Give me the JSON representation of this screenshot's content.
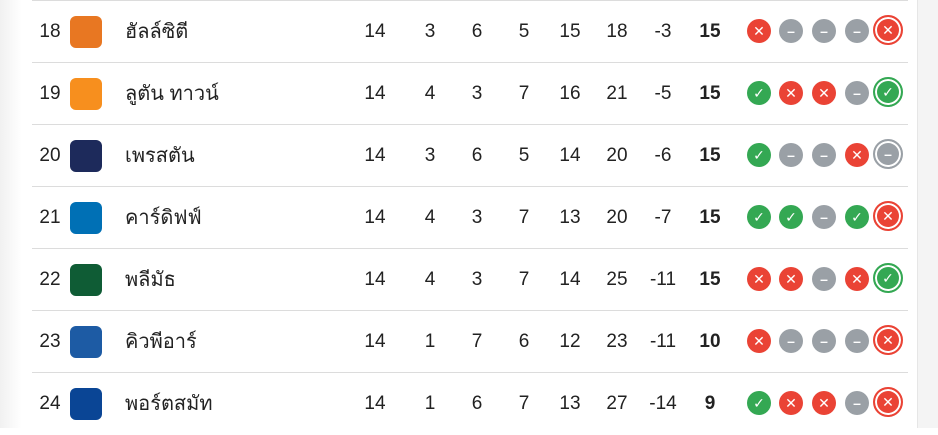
{
  "colors": {
    "win": "#34a853",
    "loss": "#ea4335",
    "draw": "#9aa0a6"
  },
  "icons": {
    "W": "check-icon",
    "L": "cross-icon",
    "D": "minus-icon"
  },
  "rows": [
    {
      "rank": "18",
      "name": "ฮัลล์ซิตี",
      "logo_color": "#e87722",
      "p": "14",
      "w": "3",
      "d": "6",
      "l": "5",
      "gf": "15",
      "ga": "18",
      "gd": "-3",
      "pts": "15",
      "form": [
        "L",
        "D",
        "D",
        "D",
        "L"
      ]
    },
    {
      "rank": "19",
      "name": "ลูตัน ทาวน์",
      "logo_color": "#f78f1e",
      "p": "14",
      "w": "4",
      "d": "3",
      "l": "7",
      "gf": "16",
      "ga": "21",
      "gd": "-5",
      "pts": "15",
      "form": [
        "W",
        "L",
        "L",
        "D",
        "W"
      ]
    },
    {
      "rank": "20",
      "name": "เพรสตัน",
      "logo_color": "#1d2a5b",
      "p": "14",
      "w": "3",
      "d": "6",
      "l": "5",
      "gf": "14",
      "ga": "20",
      "gd": "-6",
      "pts": "15",
      "form": [
        "W",
        "D",
        "D",
        "L",
        "D"
      ]
    },
    {
      "rank": "21",
      "name": "คาร์ดิฟฟ์",
      "logo_color": "#0070b5",
      "p": "14",
      "w": "4",
      "d": "3",
      "l": "7",
      "gf": "13",
      "ga": "20",
      "gd": "-7",
      "pts": "15",
      "form": [
        "W",
        "W",
        "D",
        "W",
        "L"
      ]
    },
    {
      "rank": "22",
      "name": "พลีมัธ",
      "logo_color": "#0f5c35",
      "p": "14",
      "w": "4",
      "d": "3",
      "l": "7",
      "gf": "14",
      "ga": "25",
      "gd": "-11",
      "pts": "15",
      "form": [
        "L",
        "L",
        "D",
        "L",
        "W"
      ]
    },
    {
      "rank": "23",
      "name": "คิวพีอาร์",
      "logo_color": "#1d5ba4",
      "p": "14",
      "w": "1",
      "d": "7",
      "l": "6",
      "gf": "12",
      "ga": "23",
      "gd": "-11",
      "pts": "10",
      "form": [
        "L",
        "D",
        "D",
        "D",
        "L"
      ]
    },
    {
      "rank": "24",
      "name": "พอร์ตสมัท",
      "logo_color": "#0a4595",
      "p": "14",
      "w": "1",
      "d": "6",
      "l": "7",
      "gf": "13",
      "ga": "27",
      "gd": "-14",
      "pts": "9",
      "form": [
        "W",
        "L",
        "L",
        "D",
        "L"
      ]
    }
  ]
}
